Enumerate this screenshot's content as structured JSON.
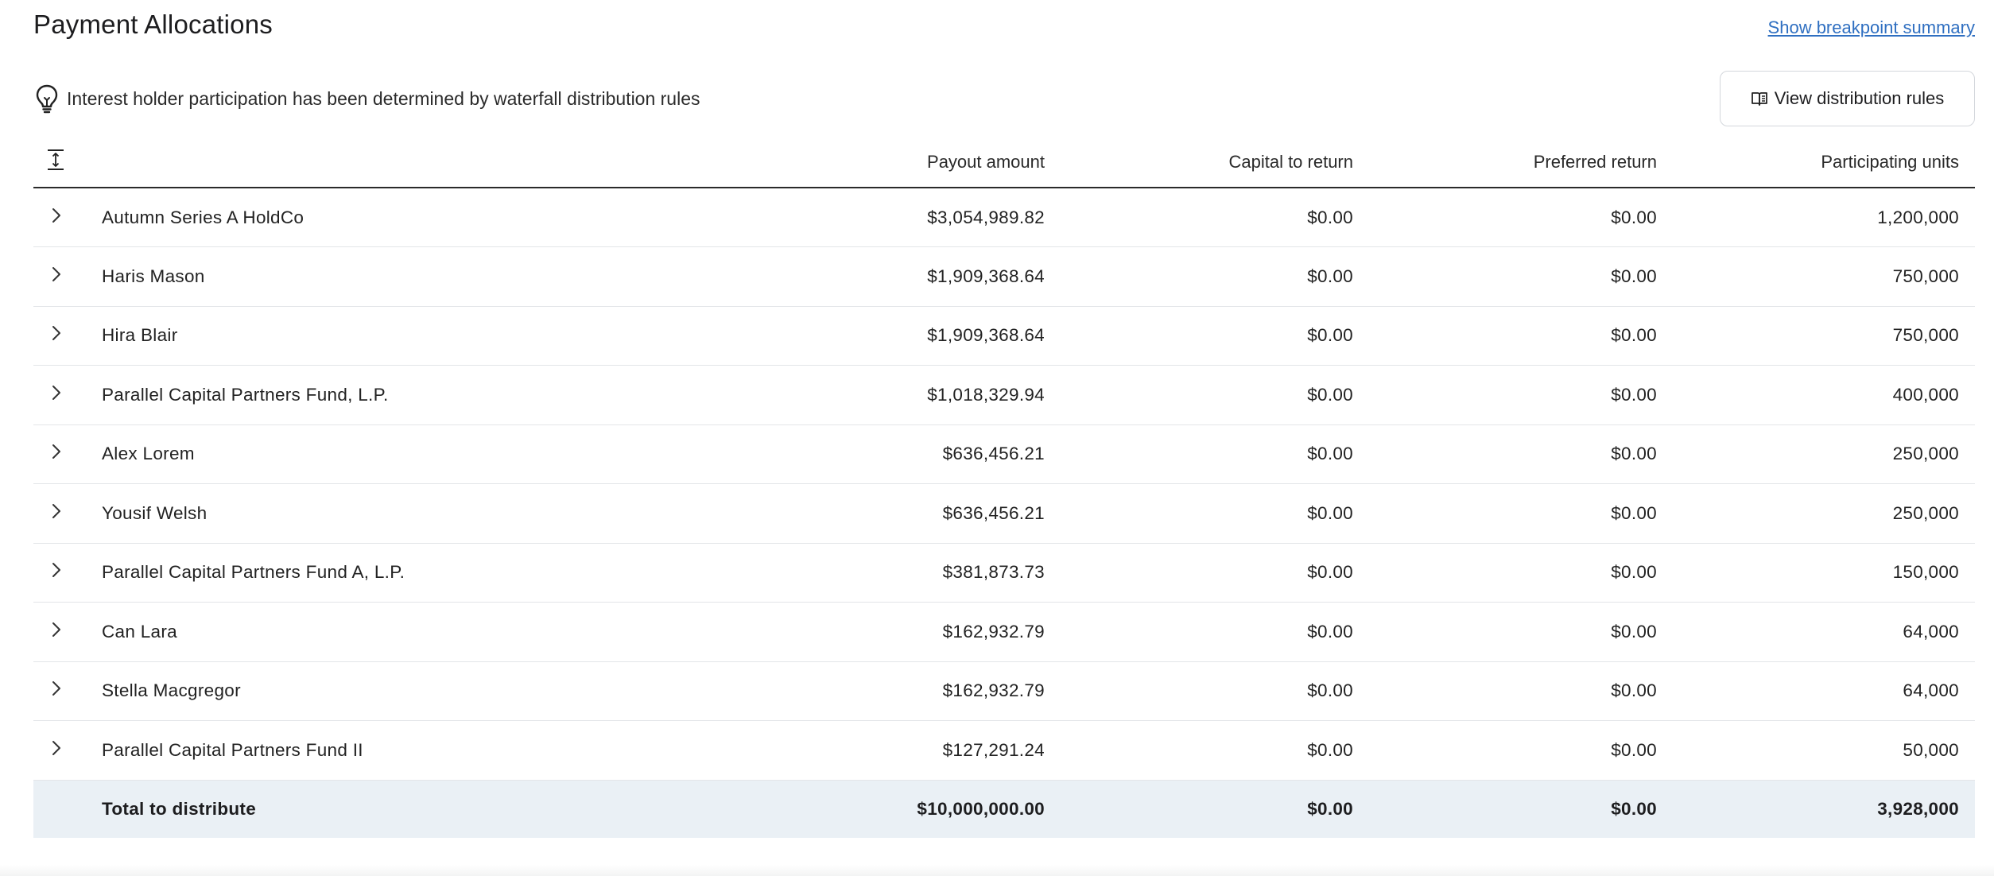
{
  "header": {
    "title": "Payment Allocations",
    "summary_link": "Show breakpoint summary"
  },
  "info": {
    "icon": "lightbulb-icon",
    "text": "Interest holder participation has been determined by waterfall distribution rules",
    "button_icon": "book-icon",
    "button_label": "View distribution rules"
  },
  "table": {
    "expand_icon": "expand-collapse-icon",
    "columns": {
      "name": "",
      "payout": "Payout amount",
      "capital": "Capital to return",
      "preferred": "Preferred return",
      "units": "Participating units"
    },
    "rows": [
      {
        "name": "Autumn Series A HoldCo",
        "payout": "$3,054,989.82",
        "capital": "$0.00",
        "preferred": "$0.00",
        "units": "1,200,000"
      },
      {
        "name": "Haris Mason",
        "payout": "$1,909,368.64",
        "capital": "$0.00",
        "preferred": "$0.00",
        "units": "750,000"
      },
      {
        "name": "Hira Blair",
        "payout": "$1,909,368.64",
        "capital": "$0.00",
        "preferred": "$0.00",
        "units": "750,000"
      },
      {
        "name": "Parallel Capital Partners Fund, L.P.",
        "payout": "$1,018,329.94",
        "capital": "$0.00",
        "preferred": "$0.00",
        "units": "400,000"
      },
      {
        "name": "Alex Lorem",
        "payout": "$636,456.21",
        "capital": "$0.00",
        "preferred": "$0.00",
        "units": "250,000"
      },
      {
        "name": "Yousif Welsh",
        "payout": "$636,456.21",
        "capital": "$0.00",
        "preferred": "$0.00",
        "units": "250,000"
      },
      {
        "name": "Parallel Capital Partners Fund A, L.P.",
        "payout": "$381,873.73",
        "capital": "$0.00",
        "preferred": "$0.00",
        "units": "150,000"
      },
      {
        "name": "Can Lara",
        "payout": "$162,932.79",
        "capital": "$0.00",
        "preferred": "$0.00",
        "units": "64,000"
      },
      {
        "name": "Stella Macgregor",
        "payout": "$162,932.79",
        "capital": "$0.00",
        "preferred": "$0.00",
        "units": "64,000"
      },
      {
        "name": "Parallel Capital Partners Fund II",
        "payout": "$127,291.24",
        "capital": "$0.00",
        "preferred": "$0.00",
        "units": "50,000"
      }
    ],
    "total": {
      "name": "Total to distribute",
      "payout": "$10,000,000.00",
      "capital": "$0.00",
      "preferred": "$0.00",
      "units": "3,928,000"
    }
  },
  "colors": {
    "link": "#2f6fc1",
    "total_row_bg": "#eaf0f5",
    "row_divider": "#e3e5e8",
    "header_divider": "#2a2a2a"
  }
}
